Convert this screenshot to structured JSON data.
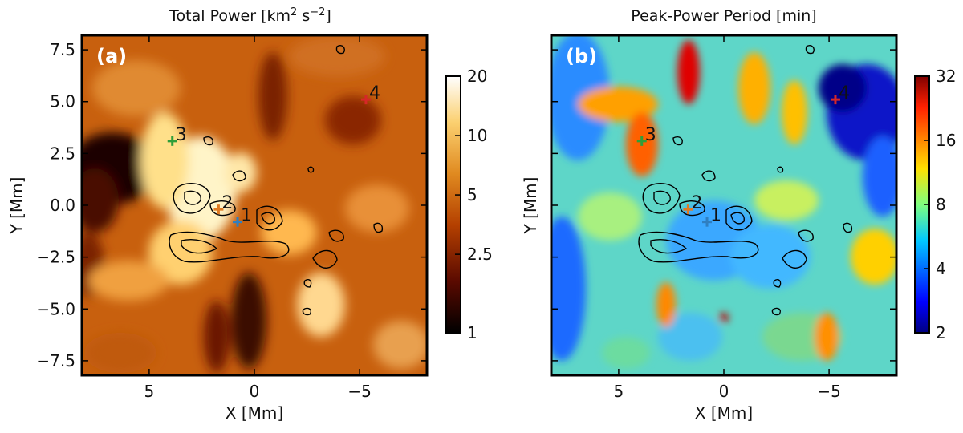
{
  "chart_data": [
    {
      "type": "heatmap",
      "panel_label": "(a)",
      "title_main": "Total Power [km",
      "title_sup1": "2",
      "title_mid": " s",
      "title_sup2": "−2",
      "title_end": "]",
      "xlabel": "X [Mm]",
      "ylabel": "Y [Mm]",
      "xlim": [
        8.2,
        -8.2
      ],
      "ylim": [
        -8.2,
        8.2
      ],
      "x_ticks": [
        5,
        0,
        -5
      ],
      "x_tick_labels": [
        "5",
        "0",
        "−5"
      ],
      "y_ticks": [
        7.5,
        5.0,
        2.5,
        0.0,
        -2.5,
        -5.0,
        -7.5
      ],
      "y_tick_labels": [
        "7.5",
        "5.0",
        "2.5",
        "0.0",
        "−2.5",
        "−5.0",
        "−7.5"
      ],
      "colormap": "afmhot",
      "colorbar": {
        "scale": "log",
        "range": [
          1,
          20
        ],
        "ticks": [
          1,
          2.5,
          5,
          10,
          20
        ],
        "tick_labels": [
          "1",
          "2.5",
          "5",
          "10",
          "20"
        ]
      },
      "points": [
        {
          "label": "1",
          "x": 0.8,
          "y": -0.8,
          "color": "#2f7fc1"
        },
        {
          "label": "2",
          "x": 1.7,
          "y": -0.2,
          "color": "#e07b22"
        },
        {
          "label": "3",
          "x": 3.9,
          "y": 3.1,
          "color": "#2e9e3a"
        },
        {
          "label": "4",
          "x": -5.3,
          "y": 5.1,
          "color": "#d62728"
        }
      ]
    },
    {
      "type": "heatmap",
      "panel_label": "(b)",
      "title": "Peak-Power Period [min]",
      "xlabel": "X [Mm]",
      "ylabel": "Y [Mm]",
      "xlim": [
        8.2,
        -8.2
      ],
      "ylim": [
        -8.2,
        8.2
      ],
      "x_ticks": [
        5,
        0,
        -5
      ],
      "x_tick_labels": [
        "5",
        "0",
        "−5"
      ],
      "y_ticks": [
        7.5,
        5.0,
        2.5,
        0.0,
        -2.5,
        -5.0,
        -7.5
      ],
      "colormap": "jet",
      "colorbar": {
        "scale": "log",
        "range": [
          2,
          32
        ],
        "ticks": [
          2,
          4,
          8,
          16,
          32
        ],
        "tick_labels": [
          "2",
          "4",
          "8",
          "16",
          "32"
        ]
      },
      "points": [
        {
          "label": "1",
          "x": 0.8,
          "y": -0.8,
          "color": "#2f7fc1"
        },
        {
          "label": "2",
          "x": 1.7,
          "y": -0.2,
          "color": "#e07b22"
        },
        {
          "label": "3",
          "x": 3.9,
          "y": 3.1,
          "color": "#2e9e3a"
        },
        {
          "label": "4",
          "x": -5.3,
          "y": 5.1,
          "color": "#d62728"
        }
      ]
    }
  ]
}
